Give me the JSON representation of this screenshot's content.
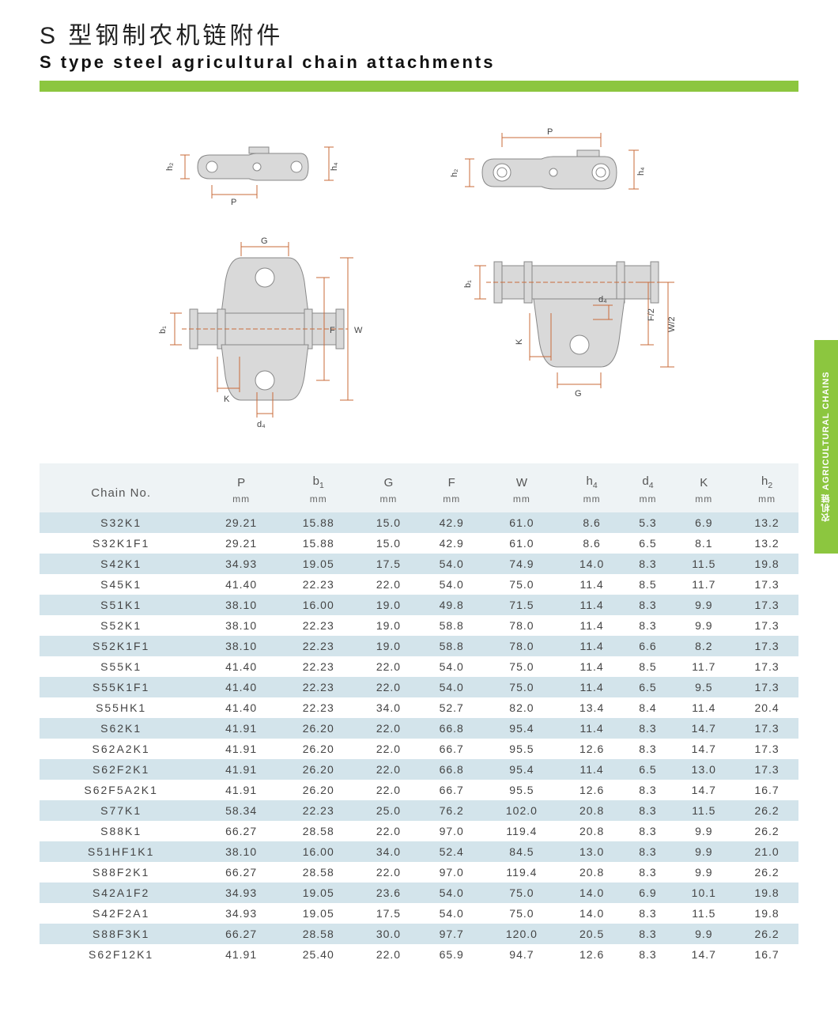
{
  "title_cn": "S 型钢制农机链附件",
  "title_en": "S type steel agricultural chain attachments",
  "side_tab": "农机链 AGRICULTURAL CHAINS",
  "colors": {
    "accent_green": "#8cc63f",
    "row_odd_bg": "#d3e4eb",
    "row_even_bg": "#ffffff",
    "header_bg": "#eef3f5",
    "dim_line": "#c96b3a",
    "part_fill": "#d9d9d9",
    "part_stroke": "#888888"
  },
  "diagram_labels": {
    "P": "P",
    "h2": "h₂",
    "h4": "h₄",
    "G": "G",
    "F": "F",
    "W": "W",
    "b1": "b₁",
    "K": "K",
    "d4": "d₄",
    "F2": "F/2",
    "W2": "W/2"
  },
  "table": {
    "chain_no_label": "Chain No.",
    "unit_label": "mm",
    "columns": [
      "P",
      "b1",
      "G",
      "F",
      "W",
      "h4",
      "d4",
      "K",
      "h2"
    ],
    "column_html": [
      "P",
      "b<sub class='sub1'>1</sub>",
      "G",
      "F",
      "W",
      "h<sub class='sub1'>4</sub>",
      "d<sub class='sub1'>4</sub>",
      "K",
      "h<sub class='sub1'>2</sub>"
    ],
    "rows": [
      {
        "chain": "S32K1",
        "vals": [
          "29.21",
          "15.88",
          "15.0",
          "42.9",
          "61.0",
          "8.6",
          "5.3",
          "6.9",
          "13.2"
        ]
      },
      {
        "chain": "S32K1F1",
        "vals": [
          "29.21",
          "15.88",
          "15.0",
          "42.9",
          "61.0",
          "8.6",
          "6.5",
          "8.1",
          "13.2"
        ]
      },
      {
        "chain": "S42K1",
        "vals": [
          "34.93",
          "19.05",
          "17.5",
          "54.0",
          "74.9",
          "14.0",
          "8.3",
          "11.5",
          "19.8"
        ]
      },
      {
        "chain": "S45K1",
        "vals": [
          "41.40",
          "22.23",
          "22.0",
          "54.0",
          "75.0",
          "11.4",
          "8.5",
          "11.7",
          "17.3"
        ]
      },
      {
        "chain": "S51K1",
        "vals": [
          "38.10",
          "16.00",
          "19.0",
          "49.8",
          "71.5",
          "11.4",
          "8.3",
          "9.9",
          "17.3"
        ]
      },
      {
        "chain": "S52K1",
        "vals": [
          "38.10",
          "22.23",
          "19.0",
          "58.8",
          "78.0",
          "11.4",
          "8.3",
          "9.9",
          "17.3"
        ]
      },
      {
        "chain": "S52K1F1",
        "vals": [
          "38.10",
          "22.23",
          "19.0",
          "58.8",
          "78.0",
          "11.4",
          "6.6",
          "8.2",
          "17.3"
        ]
      },
      {
        "chain": "S55K1",
        "vals": [
          "41.40",
          "22.23",
          "22.0",
          "54.0",
          "75.0",
          "11.4",
          "8.5",
          "11.7",
          "17.3"
        ]
      },
      {
        "chain": "S55K1F1",
        "vals": [
          "41.40",
          "22.23",
          "22.0",
          "54.0",
          "75.0",
          "11.4",
          "6.5",
          "9.5",
          "17.3"
        ]
      },
      {
        "chain": "S55HK1",
        "vals": [
          "41.40",
          "22.23",
          "34.0",
          "52.7",
          "82.0",
          "13.4",
          "8.4",
          "11.4",
          "20.4"
        ]
      },
      {
        "chain": "S62K1",
        "vals": [
          "41.91",
          "26.20",
          "22.0",
          "66.8",
          "95.4",
          "11.4",
          "8.3",
          "14.7",
          "17.3"
        ]
      },
      {
        "chain": "S62A2K1",
        "vals": [
          "41.91",
          "26.20",
          "22.0",
          "66.7",
          "95.5",
          "12.6",
          "8.3",
          "14.7",
          "17.3"
        ]
      },
      {
        "chain": "S62F2K1",
        "vals": [
          "41.91",
          "26.20",
          "22.0",
          "66.8",
          "95.4",
          "11.4",
          "6.5",
          "13.0",
          "17.3"
        ]
      },
      {
        "chain": "S62F5A2K1",
        "vals": [
          "41.91",
          "26.20",
          "22.0",
          "66.7",
          "95.5",
          "12.6",
          "8.3",
          "14.7",
          "16.7"
        ]
      },
      {
        "chain": "S77K1",
        "vals": [
          "58.34",
          "22.23",
          "25.0",
          "76.2",
          "102.0",
          "20.8",
          "8.3",
          "11.5",
          "26.2"
        ]
      },
      {
        "chain": "S88K1",
        "vals": [
          "66.27",
          "28.58",
          "22.0",
          "97.0",
          "119.4",
          "20.8",
          "8.3",
          "9.9",
          "26.2"
        ]
      },
      {
        "chain": "S51HF1K1",
        "vals": [
          "38.10",
          "16.00",
          "34.0",
          "52.4",
          "84.5",
          "13.0",
          "8.3",
          "9.9",
          "21.0"
        ]
      },
      {
        "chain": "S88F2K1",
        "vals": [
          "66.27",
          "28.58",
          "22.0",
          "97.0",
          "119.4",
          "20.8",
          "8.3",
          "9.9",
          "26.2"
        ]
      },
      {
        "chain": "S42A1F2",
        "vals": [
          "34.93",
          "19.05",
          "23.6",
          "54.0",
          "75.0",
          "14.0",
          "6.9",
          "10.1",
          "19.8"
        ]
      },
      {
        "chain": "S42F2A1",
        "vals": [
          "34.93",
          "19.05",
          "17.5",
          "54.0",
          "75.0",
          "14.0",
          "8.3",
          "11.5",
          "19.8"
        ]
      },
      {
        "chain": "S88F3K1",
        "vals": [
          "66.27",
          "28.58",
          "30.0",
          "97.7",
          "120.0",
          "20.5",
          "8.3",
          "9.9",
          "26.2"
        ]
      },
      {
        "chain": "S62F12K1",
        "vals": [
          "41.91",
          "25.40",
          "22.0",
          "65.9",
          "94.7",
          "12.6",
          "8.3",
          "14.7",
          "16.7"
        ]
      }
    ]
  }
}
